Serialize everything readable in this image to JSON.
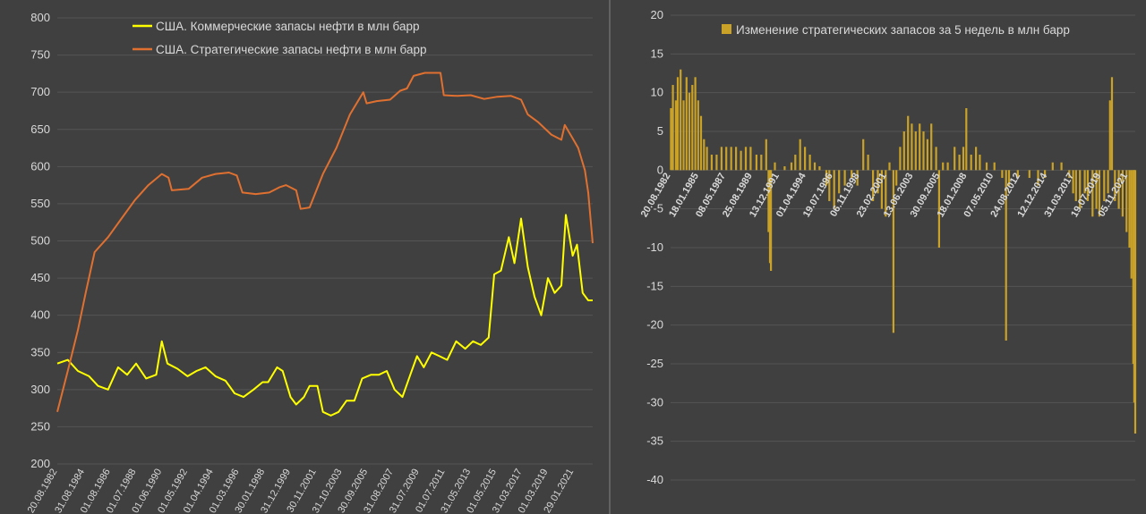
{
  "chart_data": [
    {
      "type": "line",
      "ylim": [
        200,
        800
      ],
      "yticks": [
        200,
        250,
        300,
        350,
        400,
        450,
        500,
        550,
        600,
        650,
        700,
        750,
        800
      ],
      "grid": "horizontal",
      "legend_placement": "top-center",
      "xrange": [
        "1982-08-20",
        "2022-07-01"
      ],
      "x_tick_labels": [
        "20.08.1982",
        "31.08.1984",
        "01.08.1986",
        "01.07.1988",
        "01.06.1990",
        "01.05.1992",
        "01.04.1994",
        "01.03.1996",
        "30.01.1998",
        "31.12.1999",
        "30.11.2001",
        "31.10.2003",
        "30.09.2005",
        "31.08.2007",
        "31.07.2009",
        "01.07.2011",
        "31.05.2013",
        "01.05.2015",
        "31.03.2017",
        "01.03.2019",
        "29.01.2021"
      ],
      "series": [
        {
          "name": "США. Коммерческие запасы нефти в млн барр",
          "color": "#FFFF00",
          "points": [
            [
              "1982-08-20",
              335
            ],
            [
              "1983-06-01",
              340
            ],
            [
              "1984-03-01",
              325
            ],
            [
              "1985-01-01",
              318
            ],
            [
              "1985-09-01",
              305
            ],
            [
              "1986-06-01",
              300
            ],
            [
              "1987-03-01",
              330
            ],
            [
              "1987-11-01",
              320
            ],
            [
              "1988-07-01",
              335
            ],
            [
              "1989-04-01",
              315
            ],
            [
              "1990-01-01",
              320
            ],
            [
              "1990-06-01",
              365
            ],
            [
              "1990-11-01",
              335
            ],
            [
              "1991-08-01",
              328
            ],
            [
              "1992-05-01",
              318
            ],
            [
              "1993-01-01",
              325
            ],
            [
              "1993-09-01",
              330
            ],
            [
              "1994-06-01",
              318
            ],
            [
              "1995-03-01",
              312
            ],
            [
              "1995-11-01",
              295
            ],
            [
              "1996-07-01",
              290
            ],
            [
              "1997-04-01",
              300
            ],
            [
              "1997-12-01",
              310
            ],
            [
              "1998-05-01",
              310
            ],
            [
              "1999-01-01",
              330
            ],
            [
              "1999-06-01",
              325
            ],
            [
              "2000-01-01",
              290
            ],
            [
              "2000-06-01",
              280
            ],
            [
              "2001-01-01",
              290
            ],
            [
              "2001-06-01",
              305
            ],
            [
              "2002-01-01",
              305
            ],
            [
              "2002-06-01",
              270
            ],
            [
              "2003-01-01",
              265
            ],
            [
              "2003-08-01",
              270
            ],
            [
              "2004-03-01",
              285
            ],
            [
              "2004-10-01",
              285
            ],
            [
              "2005-05-01",
              315
            ],
            [
              "2006-01-01",
              320
            ],
            [
              "2006-08-01",
              320
            ],
            [
              "2007-03-01",
              325
            ],
            [
              "2007-10-01",
              300
            ],
            [
              "2008-05-01",
              290
            ],
            [
              "2008-12-01",
              320
            ],
            [
              "2009-06-01",
              345
            ],
            [
              "2009-12-01",
              330
            ],
            [
              "2010-07-01",
              350
            ],
            [
              "2011-02-01",
              345
            ],
            [
              "2011-09-01",
              340
            ],
            [
              "2012-05-01",
              365
            ],
            [
              "2013-01-01",
              355
            ],
            [
              "2013-08-01",
              365
            ],
            [
              "2014-03-01",
              360
            ],
            [
              "2014-10-01",
              370
            ],
            [
              "2015-03-01",
              455
            ],
            [
              "2015-09-01",
              460
            ],
            [
              "2016-04-01",
              505
            ],
            [
              "2016-09-01",
              470
            ],
            [
              "2017-03-01",
              530
            ],
            [
              "2017-09-01",
              465
            ],
            [
              "2018-03-01",
              425
            ],
            [
              "2018-09-01",
              400
            ],
            [
              "2019-03-01",
              450
            ],
            [
              "2019-09-01",
              430
            ],
            [
              "2020-03-01",
              440
            ],
            [
              "2020-07-01",
              535
            ],
            [
              "2021-01-01",
              480
            ],
            [
              "2021-05-01",
              495
            ],
            [
              "2021-10-01",
              430
            ],
            [
              "2022-03-01",
              420
            ],
            [
              "2022-07-01",
              420
            ]
          ]
        },
        {
          "name": "США. Стратегические запасы нефти в млн барр",
          "color": "#E07030",
          "points": [
            [
              "1982-08-20",
              270
            ],
            [
              "1983-06-01",
              325
            ],
            [
              "1984-03-01",
              380
            ],
            [
              "1984-10-01",
              430
            ],
            [
              "1985-06-01",
              485
            ],
            [
              "1986-06-01",
              505
            ],
            [
              "1987-06-01",
              530
            ],
            [
              "1988-06-01",
              555
            ],
            [
              "1989-06-01",
              575
            ],
            [
              "1990-06-01",
              590
            ],
            [
              "1990-12-01",
              585
            ],
            [
              "1991-03-01",
              568
            ],
            [
              "1992-06-01",
              570
            ],
            [
              "1993-06-01",
              585
            ],
            [
              "1994-06-01",
              590
            ],
            [
              "1995-06-01",
              592
            ],
            [
              "1996-01-01",
              588
            ],
            [
              "1996-06-01",
              565
            ],
            [
              "1997-06-01",
              563
            ],
            [
              "1998-06-01",
              565
            ],
            [
              "1999-03-01",
              572
            ],
            [
              "1999-09-01",
              575
            ],
            [
              "2000-06-01",
              568
            ],
            [
              "2000-10-01",
              543
            ],
            [
              "2001-06-01",
              545
            ],
            [
              "2002-06-01",
              590
            ],
            [
              "2003-06-01",
              625
            ],
            [
              "2004-06-01",
              670
            ],
            [
              "2005-06-01",
              700
            ],
            [
              "2005-09-01",
              685
            ],
            [
              "2006-06-01",
              688
            ],
            [
              "2007-06-01",
              690
            ],
            [
              "2008-03-01",
              702
            ],
            [
              "2008-09-01",
              705
            ],
            [
              "2009-03-01",
              722
            ],
            [
              "2010-01-01",
              726
            ],
            [
              "2011-03-01",
              726
            ],
            [
              "2011-06-01",
              696
            ],
            [
              "2012-06-01",
              695
            ],
            [
              "2013-06-01",
              696
            ],
            [
              "2014-06-01",
              691
            ],
            [
              "2015-06-01",
              694
            ],
            [
              "2016-06-01",
              695
            ],
            [
              "2017-03-01",
              690
            ],
            [
              "2017-09-01",
              670
            ],
            [
              "2018-06-01",
              660
            ],
            [
              "2019-06-01",
              643
            ],
            [
              "2020-03-01",
              636
            ],
            [
              "2020-06-01",
              656
            ],
            [
              "2021-01-01",
              638
            ],
            [
              "2021-06-01",
              625
            ],
            [
              "2021-12-01",
              595
            ],
            [
              "2022-03-01",
              565
            ],
            [
              "2022-07-01",
              497
            ]
          ]
        }
      ]
    },
    {
      "type": "bar",
      "ylim": [
        -40,
        20
      ],
      "yticks": [
        -40,
        -35,
        -30,
        -25,
        -20,
        -15,
        -10,
        -5,
        0,
        5,
        10,
        15,
        20
      ],
      "grid": "horizontal",
      "legend_placement": "top-center",
      "xrange": [
        "1982-08-20",
        "2022-07-01"
      ],
      "x_tick_labels": [
        "20.08.1982",
        "18.01.1985",
        "08.05.1987",
        "25.08.1989",
        "13.12.1991",
        "01.04.1994",
        "19.07.1996",
        "06.11.1998",
        "23.02.2001",
        "13.06.2003",
        "30.09.2005",
        "18.01.2008",
        "07.05.2010",
        "24.08.2012",
        "12.12.2014",
        "31.03.2017",
        "19.07.2019",
        "05.11.2021"
      ],
      "series": [
        {
          "name": "Изменение стратегических запасов за 5 недель в млн барр",
          "color": "#C9A227",
          "points": [
            [
              "1982-09-01",
              8
            ],
            [
              "1982-11-01",
              11
            ],
            [
              "1983-02-01",
              9
            ],
            [
              "1983-04-01",
              12
            ],
            [
              "1983-07-01",
              13
            ],
            [
              "1983-10-01",
              9
            ],
            [
              "1984-01-01",
              12
            ],
            [
              "1984-04-01",
              10
            ],
            [
              "1984-07-01",
              11
            ],
            [
              "1984-10-01",
              12
            ],
            [
              "1985-01-01",
              9
            ],
            [
              "1985-04-01",
              7
            ],
            [
              "1985-07-01",
              4
            ],
            [
              "1985-10-01",
              3
            ],
            [
              "1986-03-01",
              2
            ],
            [
              "1986-08-01",
              2
            ],
            [
              "1987-01-01",
              3
            ],
            [
              "1987-06-01",
              3
            ],
            [
              "1987-11-01",
              3
            ],
            [
              "1988-04-01",
              3
            ],
            [
              "1988-09-01",
              2.5
            ],
            [
              "1989-02-01",
              3
            ],
            [
              "1989-07-01",
              3
            ],
            [
              "1990-01-01",
              2
            ],
            [
              "1990-06-01",
              2
            ],
            [
              "1990-11-01",
              4
            ],
            [
              "1991-01-15",
              -8
            ],
            [
              "1991-03-01",
              -12
            ],
            [
              "1991-04-01",
              -13
            ],
            [
              "1991-08-01",
              1
            ],
            [
              "1992-06-01",
              0.5
            ],
            [
              "1993-01-01",
              1
            ],
            [
              "1993-05-01",
              2
            ],
            [
              "1993-10-01",
              4
            ],
            [
              "1994-03-01",
              3
            ],
            [
              "1994-08-01",
              2
            ],
            [
              "1995-01-01",
              1
            ],
            [
              "1995-06-01",
              0.5
            ],
            [
              "1996-01-01",
              -2
            ],
            [
              "1996-04-01",
              -4
            ],
            [
              "1996-09-01",
              -5
            ],
            [
              "1997-02-01",
              -3
            ],
            [
              "1997-08-01",
              -2
            ],
            [
              "1998-03-01",
              -1
            ],
            [
              "1998-09-01",
              -2
            ],
            [
              "1999-03-01",
              4
            ],
            [
              "1999-08-01",
              2
            ],
            [
              "2000-01-01",
              -4
            ],
            [
              "2000-06-01",
              -3
            ],
            [
              "2000-10-01",
              -5
            ],
            [
              "2001-02-01",
              -6
            ],
            [
              "2001-06-01",
              1
            ],
            [
              "2001-10-01",
              -21
            ],
            [
              "2002-01-01",
              -2
            ],
            [
              "2002-05-01",
              3
            ],
            [
              "2002-09-01",
              5
            ],
            [
              "2003-01-01",
              7
            ],
            [
              "2003-05-01",
              6
            ],
            [
              "2003-09-01",
              5
            ],
            [
              "2004-01-01",
              6
            ],
            [
              "2004-05-01",
              5
            ],
            [
              "2004-09-01",
              4
            ],
            [
              "2005-01-01",
              6
            ],
            [
              "2005-06-01",
              3
            ],
            [
              "2005-09-01",
              -10
            ],
            [
              "2006-01-01",
              1
            ],
            [
              "2006-06-01",
              1
            ],
            [
              "2007-01-01",
              3
            ],
            [
              "2007-06-01",
              2
            ],
            [
              "2007-10-01",
              3
            ],
            [
              "2008-01-01",
              8
            ],
            [
              "2008-06-01",
              2
            ],
            [
              "2008-11-01",
              3
            ],
            [
              "2009-03-01",
              2
            ],
            [
              "2009-10-01",
              1
            ],
            [
              "2010-06-01",
              1
            ],
            [
              "2011-02-01",
              -1
            ],
            [
              "2011-06-01",
              -22
            ],
            [
              "2011-09-01",
              -2
            ],
            [
              "2012-06-01",
              -1
            ],
            [
              "2013-06-01",
              -1
            ],
            [
              "2014-03-01",
              -2
            ],
            [
              "2014-10-01",
              -1
            ],
            [
              "2015-06-01",
              1
            ],
            [
              "2016-03-01",
              1
            ],
            [
              "2016-11-01",
              -1
            ],
            [
              "2017-03-01",
              -3
            ],
            [
              "2017-06-01",
              -4
            ],
            [
              "2017-10-01",
              -5
            ],
            [
              "2018-03-01",
              -3
            ],
            [
              "2018-06-01",
              -4
            ],
            [
              "2018-11-01",
              -6
            ],
            [
              "2019-03-01",
              -5
            ],
            [
              "2019-06-01",
              -6
            ],
            [
              "2019-11-01",
              -4
            ],
            [
              "2020-03-01",
              -3
            ],
            [
              "2020-05-01",
              9
            ],
            [
              "2020-07-01",
              12
            ],
            [
              "2020-10-01",
              -4
            ],
            [
              "2021-02-01",
              -5
            ],
            [
              "2021-06-01",
              -6
            ],
            [
              "2021-10-01",
              -8
            ],
            [
              "2022-01-01",
              -10
            ],
            [
              "2022-03-01",
              -14
            ],
            [
              "2022-05-01",
              -25
            ],
            [
              "2022-06-01",
              -30
            ],
            [
              "2022-07-01",
              -34
            ]
          ]
        }
      ]
    }
  ]
}
